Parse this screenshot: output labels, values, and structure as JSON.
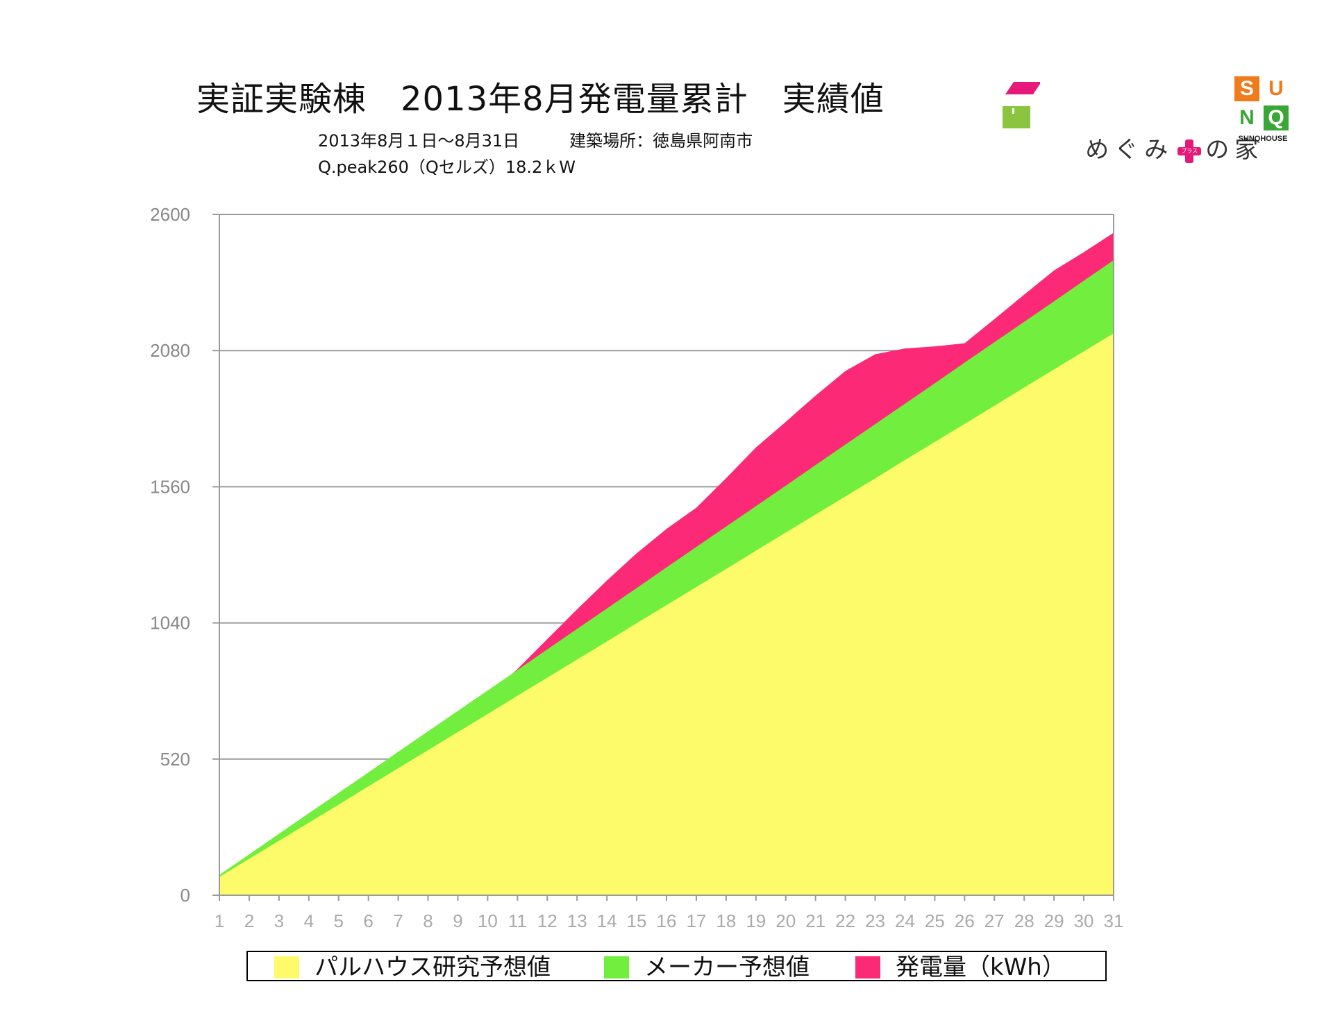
{
  "header": {
    "title": "実証実験棟　2013年8月発電量累計　実績値",
    "subtitle_line1": "2013年8月１日〜8月31日　　　建築場所：徳島県阿南市",
    "subtitle_line2": "Q.peak260（Qセルズ）18.2ｋW"
  },
  "logos": {
    "megumi_text": "めぐみ",
    "megumi_plus_text": "プラス",
    "megumi_tail": "の家",
    "sunq_letters": [
      "S",
      "U",
      "N",
      "Q"
    ],
    "sunq_house": "SUNQHOUSE"
  },
  "colors": {
    "yellow": "#fdfb6a",
    "green": "#72ee3e",
    "pink": "#fc2a76",
    "grid": "#9a9a9a",
    "logo_magenta": "#e6197a",
    "logo_green": "#8bc53f",
    "sunq_orange": "#ef7b1a",
    "sunq_green": "#3aa635"
  },
  "chart_data": {
    "type": "area",
    "title": "実証実験棟　2013年8月発電量累計　実績値",
    "ylim": [
      0,
      2600
    ],
    "yticks": [
      0,
      520,
      1040,
      1560,
      2080,
      2600
    ],
    "grid": true,
    "legend_placement": "bottom",
    "x": [
      1,
      2,
      3,
      4,
      5,
      6,
      7,
      8,
      9,
      10,
      11,
      12,
      13,
      14,
      15,
      16,
      17,
      18,
      19,
      20,
      21,
      22,
      23,
      24,
      25,
      26,
      27,
      28,
      29,
      30,
      31
    ],
    "series": [
      {
        "name": "パルハウス研究予想値",
        "color": "#fdfb6a",
        "values": [
          70,
          139,
          208,
          277,
          346,
          416,
          485,
          554,
          623,
          692,
          762,
          831,
          900,
          969,
          1039,
          1108,
          1177,
          1246,
          1316,
          1385,
          1454,
          1523,
          1592,
          1662,
          1731,
          1800,
          1869,
          1939,
          2008,
          2077,
          2146
        ]
      },
      {
        "name": "メーカー予想値",
        "color": "#72ee3e",
        "values": [
          78,
          156,
          235,
          313,
          391,
          469,
          548,
          626,
          704,
          782,
          860,
          939,
          1017,
          1095,
          1173,
          1252,
          1330,
          1408,
          1486,
          1564,
          1643,
          1721,
          1799,
          1877,
          1955,
          2034,
          2112,
          2190,
          2268,
          2347,
          2425
        ]
      },
      {
        "name": "発電量（kWh）",
        "color": "#fc2a76",
        "values": [
          70,
          139,
          208,
          277,
          346,
          416,
          485,
          560,
          656,
          758,
          864,
          978,
          1092,
          1202,
          1306,
          1399,
          1480,
          1593,
          1710,
          1808,
          1908,
          2002,
          2066,
          2088,
          2096,
          2108,
          2200,
          2294,
          2386,
          2456,
          2530
        ]
      }
    ]
  }
}
